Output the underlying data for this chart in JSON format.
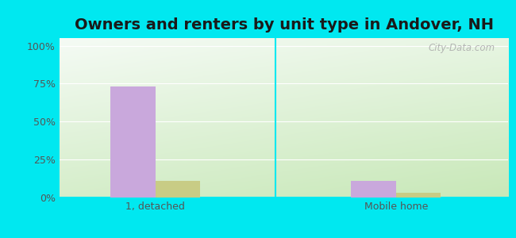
{
  "title": "Owners and renters by unit type in Andover, NH",
  "categories": [
    "1, detached",
    "Mobile home"
  ],
  "owner_values": [
    73,
    11
  ],
  "renter_values": [
    11,
    3
  ],
  "owner_color": "#c9a8dc",
  "renter_color": "#c8cc85",
  "yticks": [
    0,
    25,
    50,
    75,
    100
  ],
  "ytick_labels": [
    "0%",
    "25%",
    "50%",
    "75%",
    "100%"
  ],
  "ylim": [
    0,
    105
  ],
  "bg_outer": "#00e8f0",
  "bg_inner_topleft": "#f5fbf5",
  "bg_inner_bottomright": "#c8e8b8",
  "watermark": "City-Data.com",
  "title_fontsize": 14,
  "bar_width": 0.28,
  "group_positions": [
    1.0,
    2.5
  ]
}
